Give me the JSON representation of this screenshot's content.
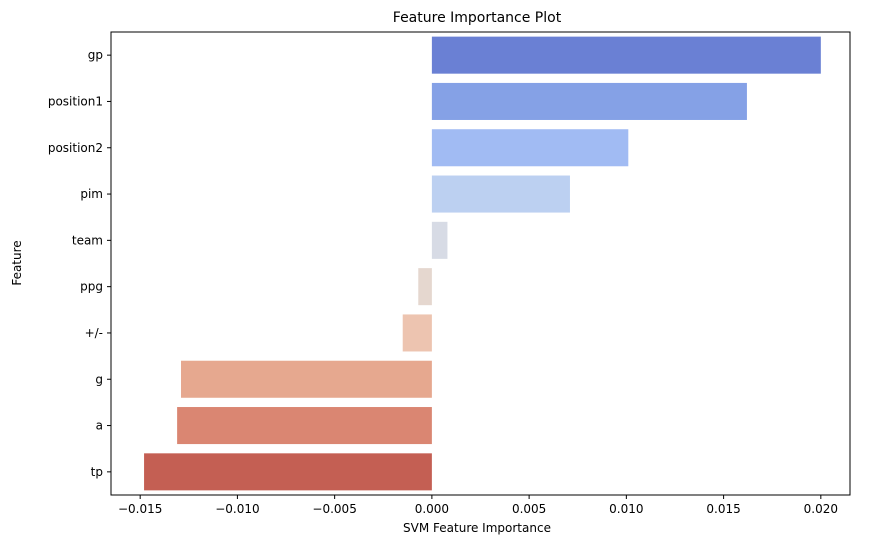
{
  "chart_data": {
    "type": "bar",
    "orientation": "horizontal",
    "title": "Feature Importance Plot",
    "xlabel": "SVM Feature Importance",
    "ylabel": "Feature",
    "xlim": [
      -0.0165,
      0.0215
    ],
    "xticks": [
      {
        "value": -0.015,
        "label": "−0.015"
      },
      {
        "value": -0.01,
        "label": "−0.010"
      },
      {
        "value": -0.005,
        "label": "−0.005"
      },
      {
        "value": 0.0,
        "label": "0.000"
      },
      {
        "value": 0.005,
        "label": "0.005"
      },
      {
        "value": 0.01,
        "label": "0.010"
      },
      {
        "value": 0.015,
        "label": "0.015"
      },
      {
        "value": 0.02,
        "label": "0.020"
      }
    ],
    "grid": false,
    "categories": [
      "gp",
      "position1",
      "position2",
      "pim",
      "team",
      "ppg",
      "+/-",
      "g",
      "a",
      "tp"
    ],
    "values": [
      0.02,
      0.0162,
      0.0101,
      0.0071,
      0.0008,
      -0.0007,
      -0.0015,
      -0.0129,
      -0.0131,
      -0.0148
    ],
    "colors": [
      "#6a80d4",
      "#85a1e6",
      "#a1bbf3",
      "#bcd0f1",
      "#d7dbe5",
      "#e5d7cf",
      "#edc4b0",
      "#e6a88f",
      "#da8672",
      "#c45f53"
    ]
  }
}
